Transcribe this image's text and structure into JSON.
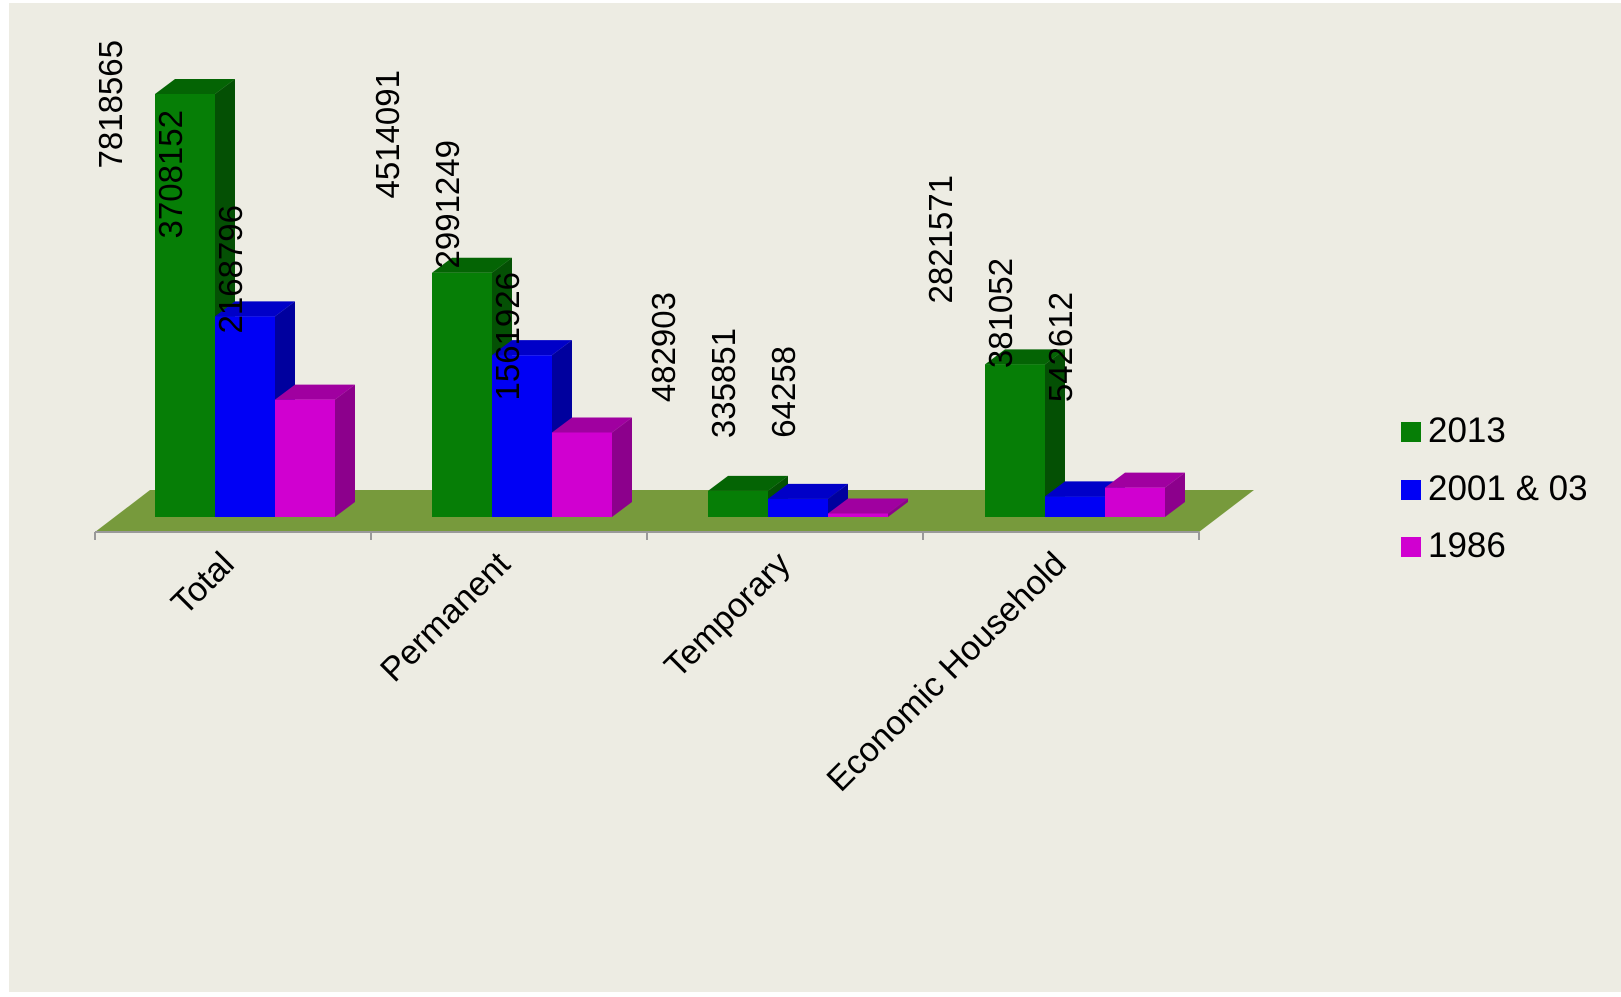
{
  "chart_data": {
    "type": "bar",
    "categories": [
      "Total",
      "Permanent",
      "Temporary",
      "Economic Household"
    ],
    "series": [
      {
        "name": "2013",
        "values": [
          7818565,
          4514091,
          482903,
          2821571
        ]
      },
      {
        "name": "2001 & 03",
        "values": [
          3708152,
          2991249,
          335851,
          381052
        ]
      },
      {
        "name": "1986",
        "values": [
          2168796,
          1561926,
          64258,
          542612
        ]
      }
    ],
    "value_labels": [
      [
        "7818565",
        "4514091",
        "482903",
        "2821571"
      ],
      [
        "3708152",
        "2991249",
        "335851",
        "381052"
      ],
      [
        "2168796",
        "1561926",
        "64258",
        "542612"
      ]
    ],
    "title": "",
    "xlabel": "",
    "ylabel": "",
    "ylim": [
      0,
      7818565
    ],
    "grid": false,
    "legend_position": "right",
    "style": "3d-clustered-column"
  },
  "colors": {
    "background": "#edece3",
    "floor": "#779a3c",
    "series": [
      {
        "front": "#067e06",
        "top": "#046404",
        "side": "#045004"
      },
      {
        "front": "#0000f5",
        "top": "#0000c8",
        "side": "#00009e"
      },
      {
        "front": "#d000d0",
        "top": "#a000a0",
        "side": "#8c008c"
      }
    ],
    "axis": "#999999"
  }
}
